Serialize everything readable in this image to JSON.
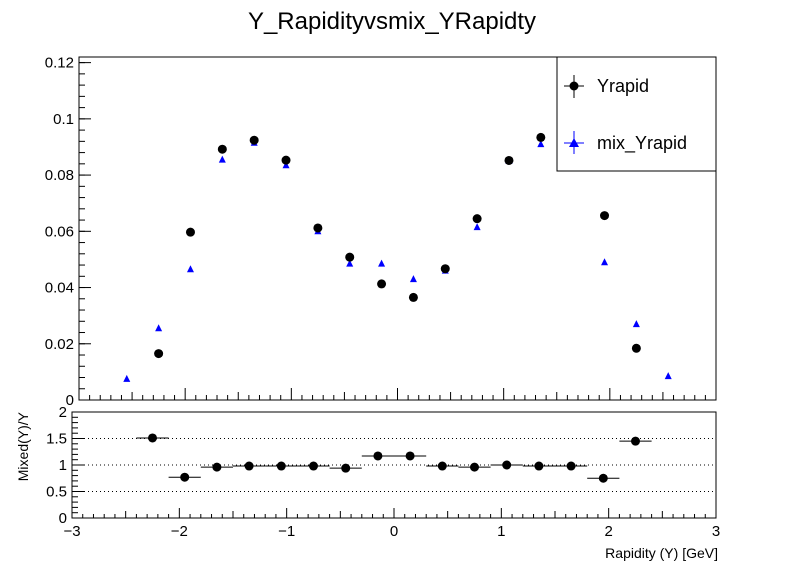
{
  "chart_data": [
    {
      "type": "scatter",
      "title": "Y_Rapidityvsmix_YRapidty",
      "xlim": [
        -3,
        3
      ],
      "ylim": [
        0,
        0.122
      ],
      "y_ticks": [
        0,
        0.02,
        0.04,
        0.06,
        0.08,
        0.1,
        0.12
      ],
      "y_tick_labels": [
        "0",
        "0.02",
        "0.04",
        "0.06",
        "0.08",
        "0.1",
        "0.12"
      ],
      "grid": false,
      "legend_position": "top-right",
      "series": [
        {
          "name": "Yrapid",
          "color": "#000000",
          "marker": "circle",
          "x": [
            -2.25,
            -1.95,
            -1.65,
            -1.35,
            -1.05,
            -0.75,
            -0.45,
            -0.15,
            0.15,
            0.45,
            0.75,
            1.05,
            1.35,
            1.65,
            1.95,
            2.25
          ],
          "y": [
            0.0165,
            0.0597,
            0.0892,
            0.0924,
            0.0853,
            0.0612,
            0.0508,
            0.0413,
            0.0365,
            0.0467,
            0.0645,
            0.0852,
            0.0934,
            0.0895,
            0.0656,
            0.0184
          ]
        },
        {
          "name": "mix_Yrapid",
          "color": "#0000ff",
          "marker": "triangle",
          "x": [
            -2.55,
            -2.25,
            -1.95,
            -1.65,
            -1.35,
            -1.05,
            -0.75,
            -0.45,
            -0.15,
            0.15,
            0.45,
            0.75,
            1.05,
            1.35,
            1.65,
            1.95,
            2.25,
            2.55
          ],
          "y": [
            0.0075,
            0.0255,
            0.0465,
            0.0855,
            0.0915,
            0.0835,
            0.06,
            0.0485,
            0.0485,
            0.043,
            0.046,
            0.0615,
            0.085,
            0.091,
            0.0915,
            0.049,
            0.027,
            0.0085
          ]
        }
      ]
    },
    {
      "type": "scatter",
      "xlabel": "Rapidity (Υ) [GeV]",
      "ylabel": "Mixed(Υ)/Υ",
      "xlim": [
        -3,
        3
      ],
      "ylim": [
        0,
        2
      ],
      "x_ticks": [
        -3,
        -2,
        -1,
        0,
        1,
        2,
        3
      ],
      "x_tick_labels": [
        "−3",
        "−2",
        "−1",
        "0",
        "1",
        "2",
        "3"
      ],
      "y_ticks": [
        0,
        0.5,
        1,
        1.5,
        2
      ],
      "y_tick_labels": [
        "0",
        "0.5",
        "1",
        "1.5",
        "2"
      ],
      "reference_lines": [
        0.5,
        1,
        1.5
      ],
      "series": [
        {
          "name": "",
          "color": "#000000",
          "marker": "circle",
          "x_error": 0.15,
          "x": [
            -2.25,
            -1.95,
            -1.65,
            -1.35,
            -1.05,
            -0.75,
            -0.45,
            -0.15,
            0.15,
            0.45,
            0.75,
            1.05,
            1.35,
            1.65,
            1.95,
            2.25
          ],
          "y": [
            1.51,
            0.77,
            0.96,
            0.98,
            0.98,
            0.98,
            0.94,
            1.17,
            1.17,
            0.98,
            0.96,
            1.0,
            0.98,
            0.98,
            0.75,
            1.45
          ],
          "y_err": [
            0.04,
            0.02,
            0.015,
            0.015,
            0.015,
            0.015,
            0.02,
            0.02,
            0.02,
            0.02,
            0.015,
            0.015,
            0.015,
            0.015,
            0.02,
            0.04
          ]
        }
      ]
    }
  ]
}
